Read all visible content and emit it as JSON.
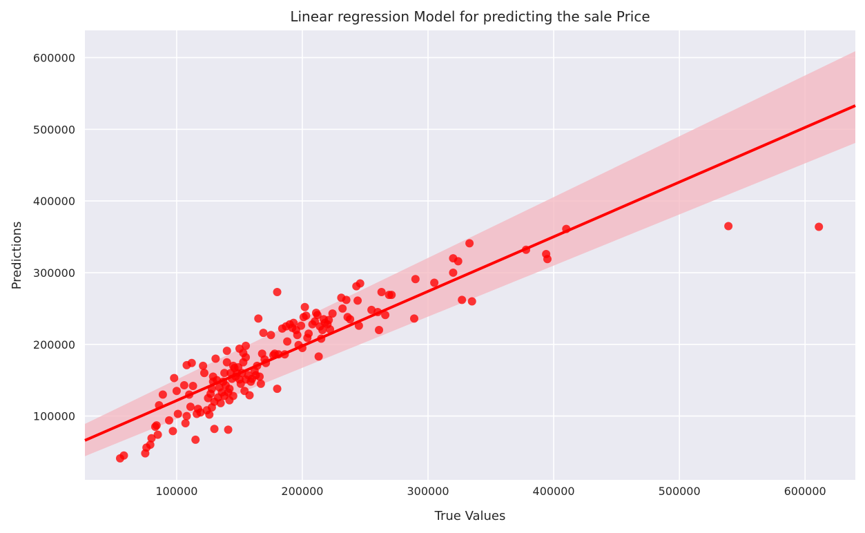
{
  "chart_data": {
    "type": "scatter",
    "title": "Linear regression Model for predicting the sale Price",
    "xlabel": "True Values",
    "ylabel": "Predictions",
    "xlim": [
      27000,
      640000
    ],
    "ylim": [
      11000,
      638000
    ],
    "xticks": [
      100000,
      200000,
      300000,
      400000,
      500000,
      600000
    ],
    "yticks": [
      100000,
      200000,
      300000,
      400000,
      500000,
      600000
    ],
    "grid": true,
    "background": "#eaeaf2",
    "grid_color": "#ffffff",
    "point_color": "#ff0000",
    "line_color": "#ff0000",
    "band_color": "#f4b6bf",
    "regression": {
      "x": [
        27000,
        640000
      ],
      "y": [
        66000,
        533000
      ],
      "ci_lower": [
        44000,
        481000
      ],
      "ci_upper": [
        89000,
        609000
      ]
    },
    "points": [
      [
        55000,
        41000
      ],
      [
        58000,
        45000
      ],
      [
        75000,
        48000
      ],
      [
        76000,
        56000
      ],
      [
        79000,
        60000
      ],
      [
        80000,
        69000
      ],
      [
        83000,
        85000
      ],
      [
        84000,
        87000
      ],
      [
        85000,
        74000
      ],
      [
        86000,
        115000
      ],
      [
        89000,
        130000
      ],
      [
        94000,
        94000
      ],
      [
        97000,
        79000
      ],
      [
        98000,
        153000
      ],
      [
        100000,
        135000
      ],
      [
        101000,
        103000
      ],
      [
        106000,
        143000
      ],
      [
        107000,
        90000
      ],
      [
        108000,
        100000
      ],
      [
        108000,
        171000
      ],
      [
        110000,
        130000
      ],
      [
        111000,
        113000
      ],
      [
        112000,
        174000
      ],
      [
        113000,
        142000
      ],
      [
        115000,
        67000
      ],
      [
        116000,
        103000
      ],
      [
        117000,
        110000
      ],
      [
        119000,
        105000
      ],
      [
        121000,
        170000
      ],
      [
        122000,
        160000
      ],
      [
        124000,
        108000
      ],
      [
        125000,
        125000
      ],
      [
        126000,
        102000
      ],
      [
        127000,
        131000
      ],
      [
        128000,
        112000
      ],
      [
        128000,
        138000
      ],
      [
        129000,
        148000
      ],
      [
        129000,
        155000
      ],
      [
        130000,
        82000
      ],
      [
        130000,
        120000
      ],
      [
        131000,
        180000
      ],
      [
        132000,
        150000
      ],
      [
        133000,
        126000
      ],
      [
        134000,
        140000
      ],
      [
        135000,
        118000
      ],
      [
        136000,
        133000
      ],
      [
        137000,
        148000
      ],
      [
        138000,
        160000
      ],
      [
        138000,
        128000
      ],
      [
        139000,
        143000
      ],
      [
        140000,
        175000
      ],
      [
        140000,
        191000
      ],
      [
        141000,
        133000
      ],
      [
        141000,
        81000
      ],
      [
        142000,
        122000
      ],
      [
        142000,
        138000
      ],
      [
        143000,
        160000
      ],
      [
        144000,
        152000
      ],
      [
        145000,
        170000
      ],
      [
        145000,
        128000
      ],
      [
        146000,
        167000
      ],
      [
        147000,
        155000
      ],
      [
        148000,
        160000
      ],
      [
        149000,
        168000
      ],
      [
        150000,
        151000
      ],
      [
        150000,
        194000
      ],
      [
        151000,
        145000
      ],
      [
        152000,
        160000
      ],
      [
        153000,
        175000
      ],
      [
        153000,
        188000
      ],
      [
        154000,
        135000
      ],
      [
        155000,
        151000
      ],
      [
        155000,
        182000
      ],
      [
        155000,
        198000
      ],
      [
        157000,
        157000
      ],
      [
        158000,
        129000
      ],
      [
        159000,
        148000
      ],
      [
        160000,
        152000
      ],
      [
        162000,
        163000
      ],
      [
        163000,
        157000
      ],
      [
        164000,
        170000
      ],
      [
        165000,
        236000
      ],
      [
        166000,
        155000
      ],
      [
        167000,
        145000
      ],
      [
        168000,
        187000
      ],
      [
        169000,
        216000
      ],
      [
        170000,
        179000
      ],
      [
        171000,
        174000
      ],
      [
        175000,
        213000
      ],
      [
        177000,
        185000
      ],
      [
        178000,
        187000
      ],
      [
        180000,
        273000
      ],
      [
        180000,
        138000
      ],
      [
        181000,
        186000
      ],
      [
        184000,
        222000
      ],
      [
        186000,
        186000
      ],
      [
        187000,
        225000
      ],
      [
        188000,
        204000
      ],
      [
        190000,
        228000
      ],
      [
        192000,
        223000
      ],
      [
        193000,
        230000
      ],
      [
        195000,
        220000
      ],
      [
        196000,
        213000
      ],
      [
        197000,
        199000
      ],
      [
        199000,
        226000
      ],
      [
        200000,
        195000
      ],
      [
        201000,
        238000
      ],
      [
        202000,
        252000
      ],
      [
        203000,
        240000
      ],
      [
        204000,
        209000
      ],
      [
        205000,
        215000
      ],
      [
        208000,
        228000
      ],
      [
        210000,
        232000
      ],
      [
        211000,
        244000
      ],
      [
        212000,
        241000
      ],
      [
        213000,
        183000
      ],
      [
        214000,
        225000
      ],
      [
        215000,
        208000
      ],
      [
        216000,
        220000
      ],
      [
        217000,
        235000
      ],
      [
        218000,
        230000
      ],
      [
        220000,
        228000
      ],
      [
        221000,
        234000
      ],
      [
        222000,
        221000
      ],
      [
        224000,
        243000
      ],
      [
        231000,
        265000
      ],
      [
        232000,
        250000
      ],
      [
        235000,
        262000
      ],
      [
        236000,
        238000
      ],
      [
        238000,
        235000
      ],
      [
        243000,
        281000
      ],
      [
        244000,
        261000
      ],
      [
        245000,
        226000
      ],
      [
        246000,
        285000
      ],
      [
        255000,
        248000
      ],
      [
        260000,
        245000
      ],
      [
        261000,
        220000
      ],
      [
        263000,
        273000
      ],
      [
        266000,
        241000
      ],
      [
        269000,
        269000
      ],
      [
        271000,
        269000
      ],
      [
        289000,
        236000
      ],
      [
        290000,
        291000
      ],
      [
        305000,
        286000
      ],
      [
        320000,
        320000
      ],
      [
        320000,
        300000
      ],
      [
        324000,
        316000
      ],
      [
        327000,
        262000
      ],
      [
        333000,
        341000
      ],
      [
        335000,
        260000
      ],
      [
        378000,
        332000
      ],
      [
        394000,
        326000
      ],
      [
        395000,
        319000
      ],
      [
        410000,
        361000
      ],
      [
        539000,
        365000
      ],
      [
        611000,
        364000
      ]
    ]
  }
}
